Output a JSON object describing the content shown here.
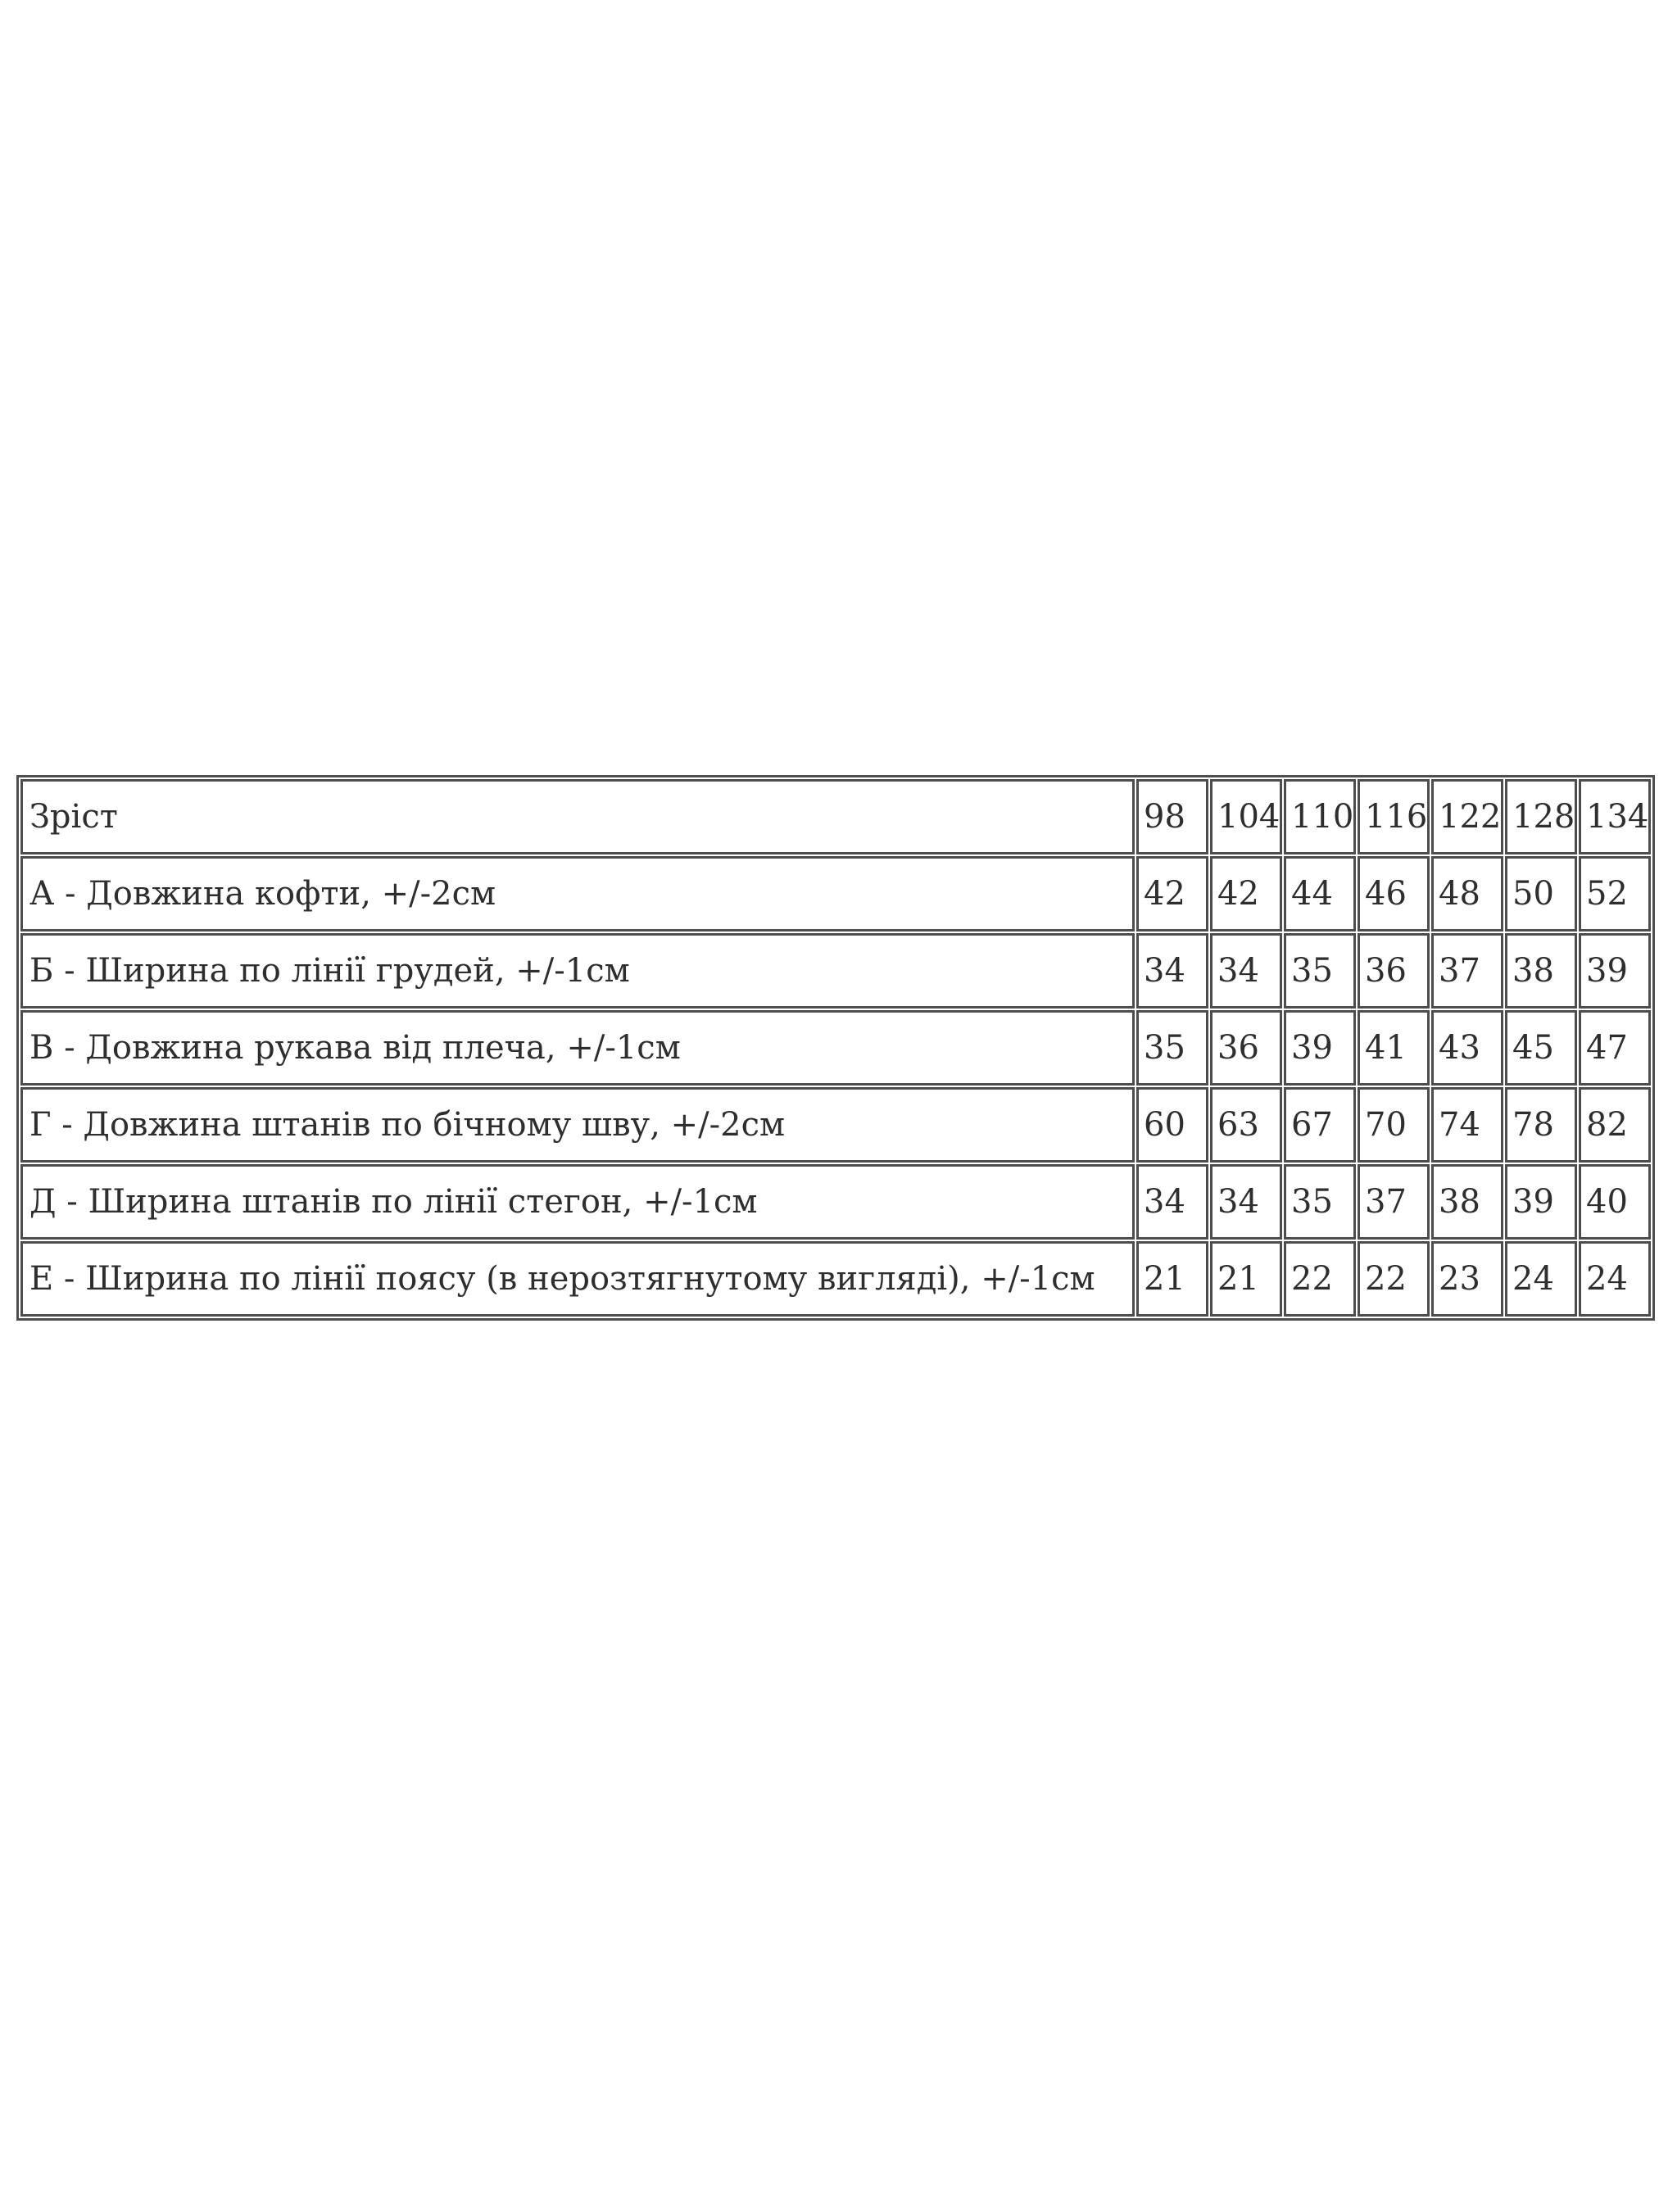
{
  "colors": {
    "border": "#4d4d4d",
    "text": "#2e2e2e",
    "background": "#ffffff"
  },
  "table": {
    "header": {
      "label": "Зріст",
      "sizes": [
        "98",
        "104",
        "110",
        "116",
        "122",
        "128",
        "134"
      ]
    },
    "rows": [
      {
        "label": "А - Довжина кофти, +/-2см",
        "values": [
          "42",
          "42",
          "44",
          "46",
          "48",
          "50",
          "52"
        ]
      },
      {
        "label": "Б - Ширина по лінії грудей, +/-1см",
        "values": [
          "34",
          "34",
          "35",
          "36",
          "37",
          "38",
          "39"
        ]
      },
      {
        "label": "В - Довжина рукава від плеча, +/-1см",
        "values": [
          "35",
          "36",
          "39",
          "41",
          "43",
          "45",
          "47"
        ]
      },
      {
        "label": "Г - Довжина штанів по бічному шву, +/-2см",
        "values": [
          "60",
          "63",
          "67",
          "70",
          "74",
          "78",
          "82"
        ]
      },
      {
        "label": "Д - Ширина штанів по лінії стегон, +/-1см",
        "values": [
          "34",
          "34",
          "35",
          "37",
          "38",
          "39",
          "40"
        ]
      },
      {
        "label": "Е - Ширина по лінії поясу (в нерозтягнутому вигляді), +/-1см",
        "values": [
          "21",
          "21",
          "22",
          "22",
          "23",
          "24",
          "24"
        ]
      }
    ]
  },
  "chart_data": {
    "type": "table",
    "title": "Зріст / розмірна сітка",
    "categories": [
      98,
      104,
      110,
      116,
      122,
      128,
      134
    ],
    "series": [
      {
        "name": "А - Довжина кофти, +/-2см",
        "values": [
          42,
          42,
          44,
          46,
          48,
          50,
          52
        ]
      },
      {
        "name": "Б - Ширина по лінії грудей, +/-1см",
        "values": [
          34,
          34,
          35,
          36,
          37,
          38,
          39
        ]
      },
      {
        "name": "В - Довжина рукава від плеча, +/-1см",
        "values": [
          35,
          36,
          39,
          41,
          43,
          45,
          47
        ]
      },
      {
        "name": "Г - Довжина штанів по бічному шву, +/-2см",
        "values": [
          60,
          63,
          67,
          70,
          74,
          78,
          82
        ]
      },
      {
        "name": "Д - Ширина штанів по лінії стегон, +/-1см",
        "values": [
          34,
          34,
          35,
          37,
          38,
          39,
          40
        ]
      },
      {
        "name": "Е - Ширина по лінії поясу (в нерозтягнутому вигляді), +/-1см",
        "values": [
          21,
          21,
          22,
          22,
          23,
          24,
          24
        ]
      }
    ]
  }
}
